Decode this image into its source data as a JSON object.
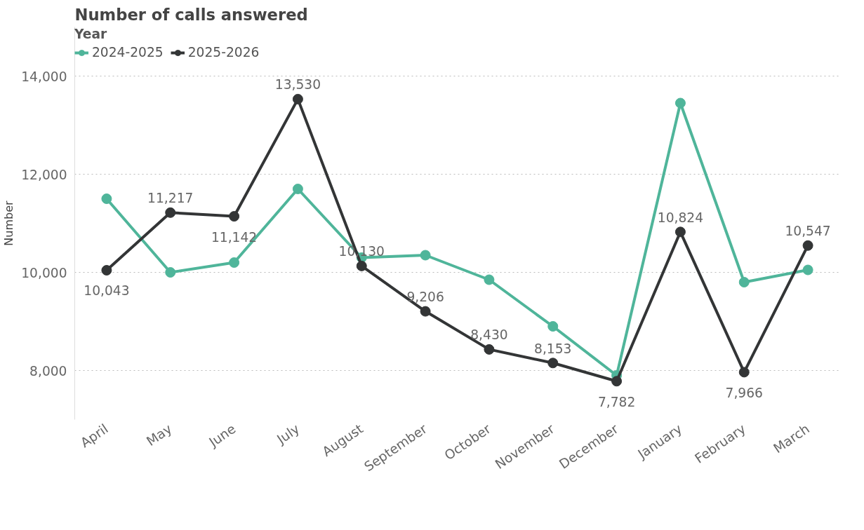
{
  "chart_data": {
    "type": "line",
    "title": "Number of calls answered",
    "ylabel": "Number",
    "legend_title": "Year",
    "categories": [
      "April",
      "May",
      "June",
      "July",
      "August",
      "September",
      "October",
      "November",
      "December",
      "January",
      "February",
      "March"
    ],
    "series": [
      {
        "name": "2024-2025",
        "color": "#4fb59a",
        "values": [
          11500,
          10000,
          10200,
          11700,
          10300,
          10350,
          9850,
          8900,
          7900,
          13450,
          9800,
          10050
        ]
      },
      {
        "name": "2025-2026",
        "color": "#333536",
        "values": [
          10043,
          11217,
          11142,
          13530,
          10130,
          9206,
          8430,
          8153,
          7782,
          10824,
          7966,
          10547
        ],
        "value_labels": [
          "10,043",
          "11,217",
          "11,142",
          "13,530",
          "10,130",
          "9,206",
          "8,430",
          "8,153",
          "7,782",
          "10,824",
          "7,966",
          "10,547"
        ]
      }
    ],
    "ylim": [
      7000,
      15000
    ],
    "yticks": [
      {
        "value": 8000,
        "label": "8,000"
      },
      {
        "value": 10000,
        "label": "10,000"
      },
      {
        "value": 12000,
        "label": "12,000"
      },
      {
        "value": 14000,
        "label": "14,000"
      }
    ],
    "grid": "y",
    "legend": "top left",
    "marker": "circle",
    "line_style": "solid"
  }
}
